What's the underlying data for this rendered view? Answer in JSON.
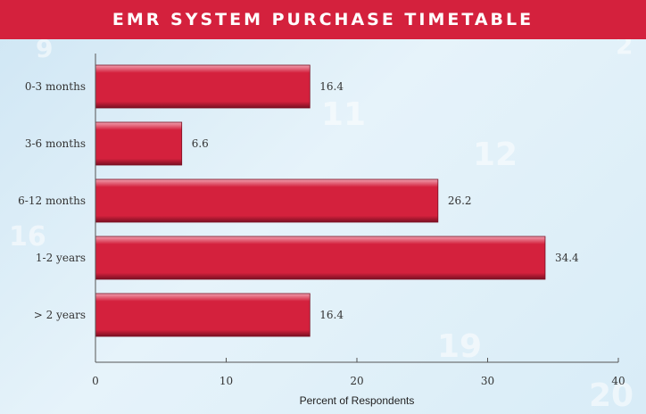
{
  "header": {
    "title": "EMR SYSTEM PURCHASE TIMETABLE"
  },
  "colors": {
    "bar": "#d4213d",
    "bar_highlight": "#f0a0b0",
    "bar_shadow": "#7a0f22",
    "header": "#d4213d",
    "axis": "#555555"
  },
  "chart_data": {
    "type": "bar",
    "orientation": "horizontal",
    "title": "EMR SYSTEM PURCHASE TIMETABLE",
    "categories": [
      "0-3 months",
      "3-6 months",
      "6-12 months",
      "1-2 years",
      "> 2 years"
    ],
    "values": [
      16.4,
      6.6,
      26.2,
      34.4,
      16.4
    ],
    "value_labels": [
      "16.4",
      "6.6",
      "26.2",
      "34.4",
      "16.4"
    ],
    "xlabel": "Percent of Respondents",
    "ylabel": "",
    "xlim": [
      0,
      40
    ],
    "xticks": [
      0,
      10,
      20,
      30,
      40
    ],
    "xtick_labels": [
      "0",
      "10",
      "20",
      "30",
      "40"
    ],
    "grid": false,
    "legend": "none"
  }
}
